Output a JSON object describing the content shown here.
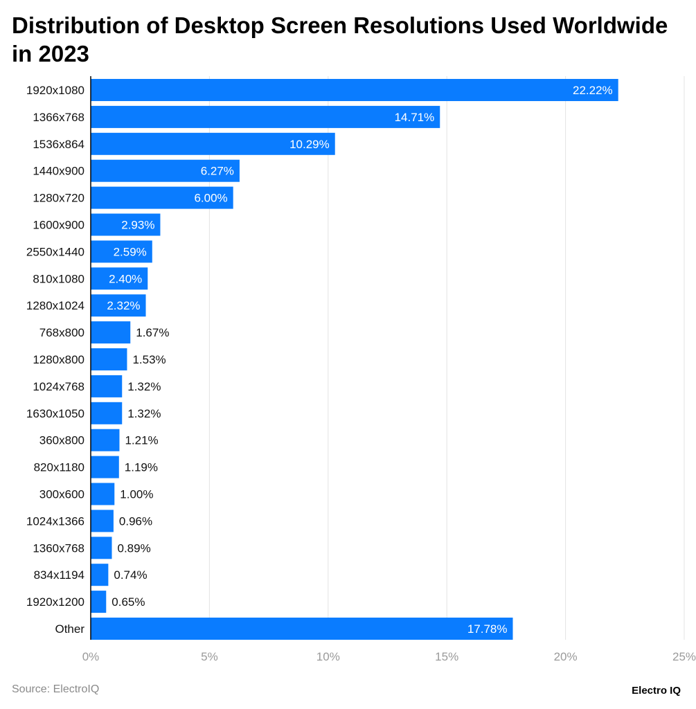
{
  "chart_data": {
    "type": "bar",
    "orientation": "horizontal",
    "title": "Distribution of Desktop Screen Resolutions Used Worldwide in 2023",
    "categories": [
      "1920x1080",
      "1366x768",
      "1536x864",
      "1440x900",
      "1280x720",
      "1600x900",
      "2550x1440",
      "810x1080",
      "1280x1024",
      "768x800",
      "1280x800",
      "1024x768",
      "1630x1050",
      "360x800",
      "820x1180",
      "300x600",
      "1024x1366",
      "1360x768",
      "834x1194",
      "1920x1200",
      "Other"
    ],
    "values": [
      22.22,
      14.71,
      10.29,
      6.27,
      6.0,
      2.93,
      2.59,
      2.4,
      2.32,
      1.67,
      1.53,
      1.32,
      1.32,
      1.21,
      1.19,
      1.0,
      0.96,
      0.89,
      0.74,
      0.65,
      17.78
    ],
    "data_labels": [
      "22.22%",
      "14.71%",
      "10.29%",
      "6.27%",
      "6.00%",
      "2.93%",
      "2.59%",
      "2.40%",
      "2.32%",
      "1.67%",
      "1.53%",
      "1.32%",
      "1.32%",
      "1.21%",
      "1.19%",
      "1.00%",
      "0.96%",
      "0.89%",
      "0.74%",
      "0.65%",
      "17.78%"
    ],
    "xlim": [
      0,
      25
    ],
    "xticks": [
      "0%",
      "5%",
      "10%",
      "15%",
      "20%",
      "25%"
    ],
    "xlabel": "",
    "ylabel": "",
    "grid": true,
    "bar_color": "#0a7cff"
  },
  "footer": {
    "source": "Source: ElectroIQ",
    "logo": "Electro IQ"
  }
}
